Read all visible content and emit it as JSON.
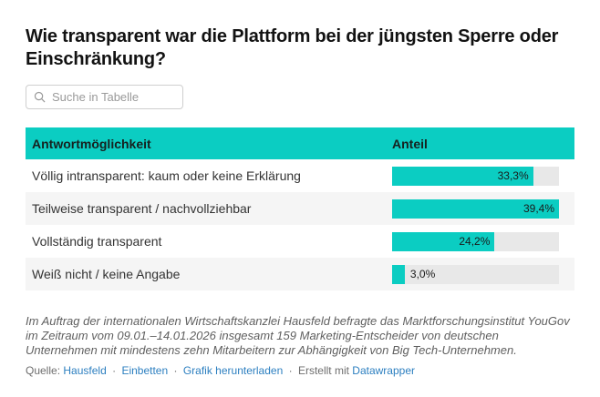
{
  "header": {
    "title": "Wie transparent war die Plattform bei der jüngsten Sperre oder Einschränkung?",
    "search_placeholder": "Suche in Tabelle"
  },
  "table": {
    "columns": [
      "Antwortmöglichkeit",
      "Anteil"
    ],
    "bar_scale_max": 39.4,
    "rows": [
      {
        "label": "Völlig intransparent: kaum oder keine Erklärung",
        "value": 33.3,
        "display": "33,3%"
      },
      {
        "label": "Teilweise transparent / nachvollziehbar",
        "value": 39.4,
        "display": "39,4%"
      },
      {
        "label": "Vollständig transparent",
        "value": 24.2,
        "display": "24,2%"
      },
      {
        "label": "Weiß nicht / keine Angabe",
        "value": 3.0,
        "display": "3,0%"
      }
    ]
  },
  "footer": {
    "footnote": "Im Auftrag der internationalen Wirtschaftskanzlei Hausfeld befragte das Marktforschungsinstitut YouGov im Zeitraum vom 09.01.–14.01.2026 insgesamt 159 Marketing-Entscheider von deutschen Unternehmen mit mindestens zehn Mitarbeitern zur Abhängigkeit von Big Tech-Unternehmen.",
    "source_prefix": "Quelle:",
    "source_link": "Hausfeld",
    "separator": "·",
    "embed_link": "Einbetten",
    "download_link": "Grafik herunterladen",
    "created_with": "Erstellt mit",
    "datawrapper_link": "Datawrapper"
  },
  "colors": {
    "accent_teal": "#0BCDC2",
    "bar_track": "#E8E8E8",
    "row_alt": "#F5F5F5",
    "link_blue": "#2C7FC0"
  },
  "chart_data": {
    "type": "bar",
    "orientation": "horizontal",
    "title": "Wie transparent war die Plattform bei der jüngsten Sperre oder Einschränkung?",
    "categories": [
      "Völlig intransparent: kaum oder keine Erklärung",
      "Teilweise transparent / nachvollziehbar",
      "Vollständig transparent",
      "Weiß nicht / keine Angabe"
    ],
    "values": [
      33.3,
      39.4,
      24.2,
      3.0
    ],
    "value_labels": [
      "33,3%",
      "39,4%",
      "24,2%",
      "3,0%"
    ],
    "unit": "%",
    "category_axis_label": "Antwortmöglichkeit",
    "value_axis_label": "Anteil",
    "bar_scale_max": 39.4,
    "legend": "none",
    "grid": false
  }
}
